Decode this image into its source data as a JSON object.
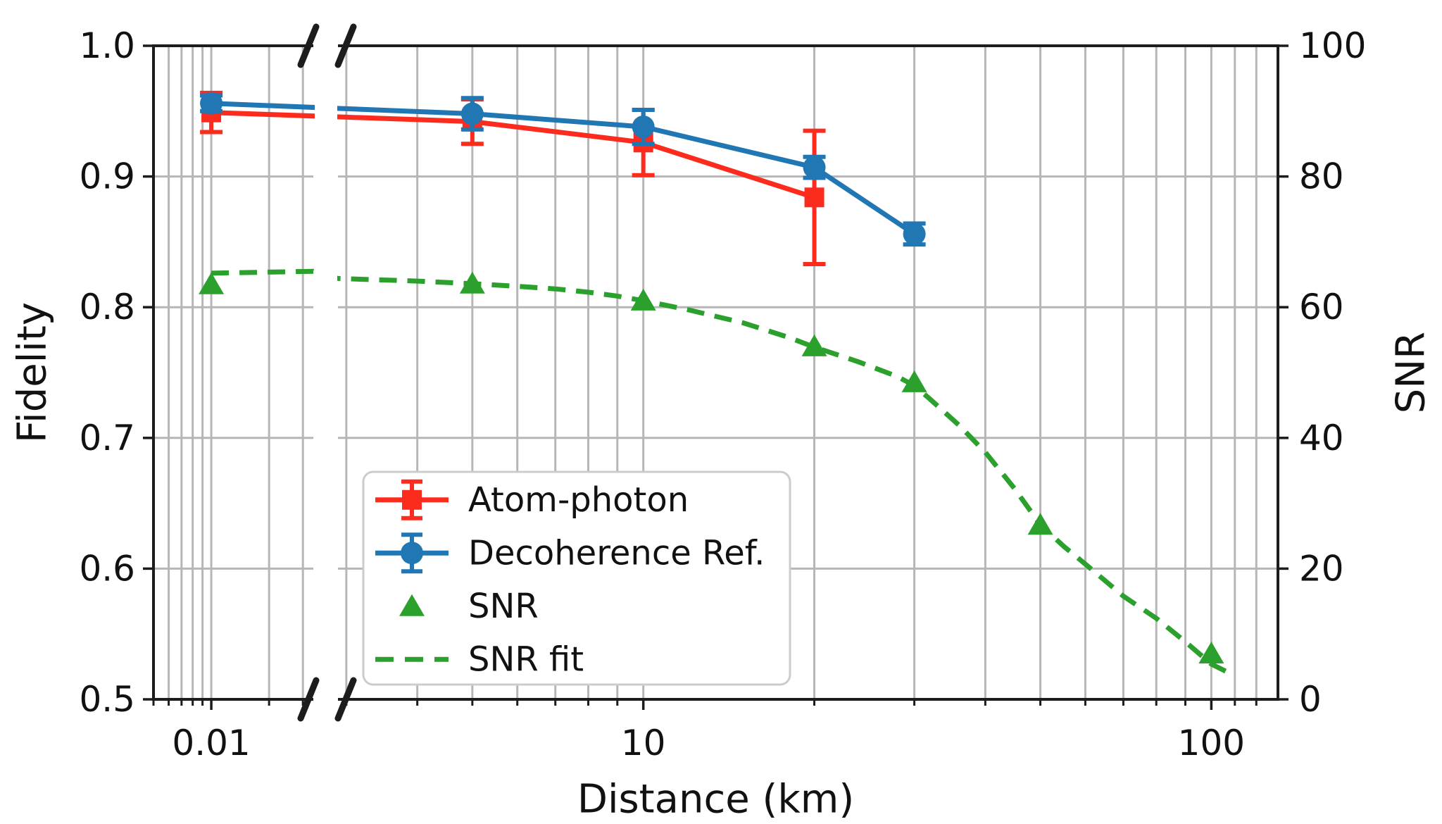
{
  "figure": {
    "background": "#ffffff",
    "description": "Fidelity and SNR versus distance with broken log x-axis"
  },
  "chart_data": {
    "type": "line",
    "title": "",
    "xlabel": "Distance (km)",
    "x_scale": "log",
    "x_break": true,
    "grid": true,
    "colors": {
      "red": "#fb2c1d",
      "blue": "#2077b4",
      "green": "#2ca02c",
      "gridline": "#b6b6b6",
      "spine": "#1c1c1c",
      "legend_border": "#cccccc"
    },
    "x_left_panel": {
      "range": [
        0.005,
        0.034
      ],
      "major_ticks": [
        {
          "v": 0.01,
          "label": "0.01"
        }
      ],
      "minor_ticks": [
        0.005,
        0.006,
        0.007,
        0.008,
        0.009,
        0.02,
        0.03
      ],
      "gridlines": [
        0.006,
        0.007,
        0.008,
        0.009,
        0.01,
        0.02,
        0.03
      ]
    },
    "x_right_panel": {
      "range": [
        2.9,
        131
      ],
      "major_ticks": [
        {
          "v": 10,
          "label": "10"
        },
        {
          "v": 100,
          "label": "100"
        }
      ],
      "minor_ticks": [
        3,
        4,
        5,
        6,
        7,
        8,
        9,
        20,
        30,
        40,
        50,
        60,
        70,
        80,
        90,
        110,
        120
      ],
      "gridlines": [
        3,
        4,
        5,
        6,
        7,
        8,
        9,
        10,
        20,
        30,
        40,
        50,
        60,
        70,
        80,
        90,
        100,
        110,
        120
      ]
    },
    "y_left": {
      "label": "Fidelity",
      "range": [
        0.5,
        1.0
      ],
      "ticks": [
        {
          "v": 1.0,
          "label": "1.0"
        },
        {
          "v": 0.9,
          "label": "0.9"
        },
        {
          "v": 0.8,
          "label": "0.8"
        },
        {
          "v": 0.7,
          "label": "0.7"
        },
        {
          "v": 0.6,
          "label": "0.6"
        },
        {
          "v": 0.5,
          "label": "0.5"
        }
      ],
      "gridlines": [
        0.6,
        0.7,
        0.8,
        0.9
      ]
    },
    "y_right": {
      "label": "SNR",
      "range": [
        0,
        100
      ],
      "ticks": [
        {
          "v": 100,
          "label": "100"
        },
        {
          "v": 80,
          "label": "80"
        },
        {
          "v": 60,
          "label": "60"
        },
        {
          "v": 40,
          "label": "40"
        },
        {
          "v": 20,
          "label": "20"
        },
        {
          "v": 0,
          "label": "0"
        }
      ]
    },
    "series": [
      {
        "name": "Atom-photon",
        "axis": "left",
        "color": "#fb2c1d",
        "marker": "square",
        "line": "solid",
        "points": [
          {
            "x": 0.01,
            "y": 0.949,
            "err": 0.015
          },
          {
            "x": 5,
            "y": 0.942,
            "err": 0.017
          },
          {
            "x": 10,
            "y": 0.926,
            "err": 0.025
          },
          {
            "x": 20,
            "y": 0.884,
            "err": 0.051
          }
        ]
      },
      {
        "name": "Decoherence Ref.",
        "axis": "left",
        "color": "#2077b4",
        "marker": "circle",
        "line": "solid",
        "points": [
          {
            "x": 0.01,
            "y": 0.956,
            "err": 0.006
          },
          {
            "x": 5,
            "y": 0.948,
            "err": 0.012
          },
          {
            "x": 10,
            "y": 0.938,
            "err": 0.013
          },
          {
            "x": 20,
            "y": 0.907,
            "err": 0.008
          },
          {
            "x": 30,
            "y": 0.856,
            "err": 0.008
          }
        ]
      },
      {
        "name": "SNR",
        "axis": "right",
        "color": "#2ca02c",
        "marker": "triangle",
        "line": "none",
        "points": [
          {
            "x": 0.01,
            "y": 63.5
          },
          {
            "x": 5,
            "y": 63.6
          },
          {
            "x": 10,
            "y": 61.0
          },
          {
            "x": 20,
            "y": 54.0
          },
          {
            "x": 30,
            "y": 48.5
          },
          {
            "x": 50,
            "y": 26.7
          },
          {
            "x": 100,
            "y": 7.0
          }
        ]
      },
      {
        "name": "SNR fit",
        "axis": "right",
        "color": "#2ca02c",
        "marker": "none",
        "line": "dashed",
        "points": [
          {
            "x": 0.01,
            "y": 65.2
          },
          {
            "x": 0.034,
            "y": 65.5
          },
          {
            "x": 2.9,
            "y": 64.4
          },
          {
            "x": 4,
            "y": 64.0
          },
          {
            "x": 5,
            "y": 63.6
          },
          {
            "x": 6,
            "y": 63.2
          },
          {
            "x": 7,
            "y": 62.8
          },
          {
            "x": 8,
            "y": 62.3
          },
          {
            "x": 9,
            "y": 61.7
          },
          {
            "x": 10,
            "y": 61.0
          },
          {
            "x": 12,
            "y": 59.6
          },
          {
            "x": 15,
            "y": 57.6
          },
          {
            "x": 18,
            "y": 55.4
          },
          {
            "x": 20,
            "y": 53.9
          },
          {
            "x": 24,
            "y": 51.6
          },
          {
            "x": 28,
            "y": 49.4
          },
          {
            "x": 30,
            "y": 48.0
          },
          {
            "x": 32,
            "y": 45.9
          },
          {
            "x": 36,
            "y": 41.9
          },
          {
            "x": 40,
            "y": 37.8
          },
          {
            "x": 45,
            "y": 32.3
          },
          {
            "x": 50,
            "y": 26.7
          },
          {
            "x": 55,
            "y": 23.4
          },
          {
            "x": 60,
            "y": 20.7
          },
          {
            "x": 70,
            "y": 15.8
          },
          {
            "x": 80,
            "y": 12.4
          },
          {
            "x": 90,
            "y": 8.8
          },
          {
            "x": 100,
            "y": 5.4
          },
          {
            "x": 106,
            "y": 4.3
          }
        ]
      }
    ],
    "legend": {
      "position": "lower-left-of-center",
      "entries": [
        {
          "label": "Atom-photon",
          "glyph": "errorbar-square",
          "color": "#fb2c1d"
        },
        {
          "label": "Decoherence Ref.",
          "glyph": "errorbar-circle",
          "color": "#2077b4"
        },
        {
          "label": "SNR",
          "glyph": "triangle",
          "color": "#2ca02c"
        },
        {
          "label": "SNR fit",
          "glyph": "dashed-line",
          "color": "#2ca02c"
        }
      ]
    }
  }
}
